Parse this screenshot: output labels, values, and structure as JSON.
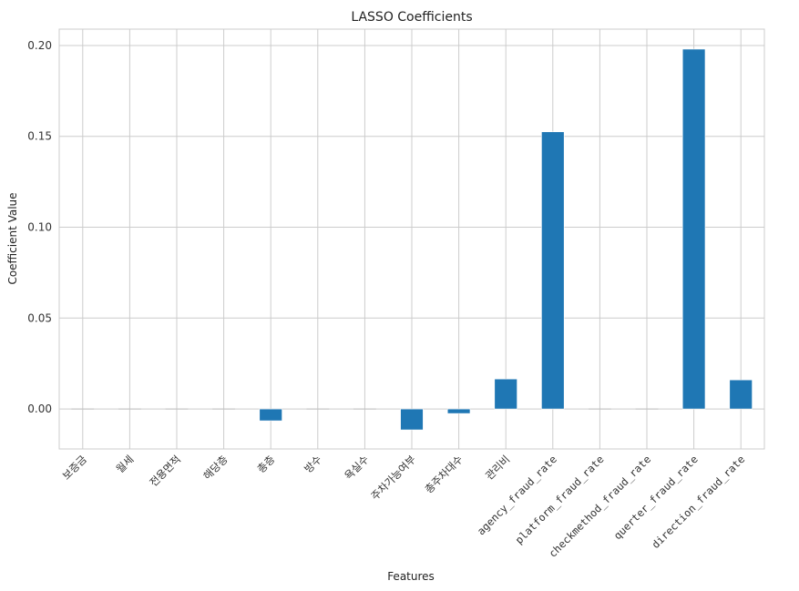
{
  "chart_data": {
    "type": "bar",
    "title": "LASSO Coefficients",
    "xlabel": "Features",
    "ylabel": "Coefficient Value",
    "categories": [
      "보증금",
      "월세",
      "전용면적",
      "해당층",
      "총층",
      "방수",
      "욕실수",
      "주차가능여부",
      "총주차대수",
      "관리비",
      "agency_fraud_rate",
      "platform_fraud_rate",
      "checkmethod_fraud_rate",
      "querter_fraud_rate",
      "direction_fraud_rate"
    ],
    "values": [
      0.0,
      0.0,
      0.0,
      0.0,
      -0.0065,
      0.0,
      0.0,
      -0.0115,
      -0.0025,
      0.0165,
      0.1525,
      0.0,
      0.0,
      0.198,
      0.016
    ],
    "ylim": [
      -0.022,
      0.209
    ],
    "yticks": [
      0.0,
      0.05,
      0.1,
      0.15,
      0.2
    ],
    "ytick_labels": [
      "0.00",
      "0.05",
      "0.10",
      "0.15",
      "0.20"
    ],
    "bar_color": "#1f77b4",
    "grid": true
  }
}
